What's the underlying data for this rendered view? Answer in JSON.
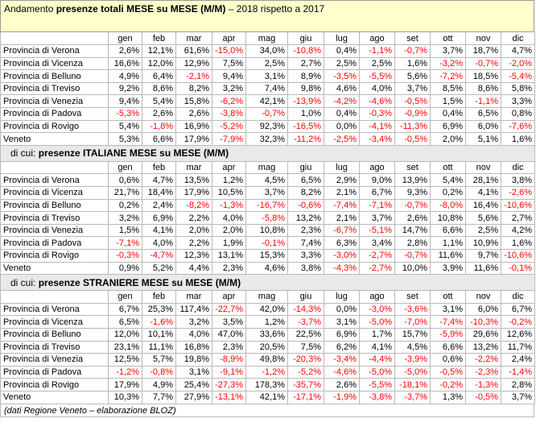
{
  "title": {
    "prefix": "Andamento ",
    "bold": "presenze totali MESE su MESE (M/M)",
    "suffix": " – 2018 rispetto a 2017"
  },
  "months": [
    "gen",
    "feb",
    "mar",
    "apr",
    "mag",
    "giu",
    "lug",
    "ago",
    "set",
    "ott",
    "nov",
    "dic"
  ],
  "sections": [
    {
      "header_prefix": "",
      "header_bold": "",
      "rows": [
        {
          "label": "Provincia di Verona",
          "values": [
            "2,6%",
            "12,1%",
            "61,6%",
            "-15,0%",
            "34,0%",
            "-10,8%",
            "0,4%",
            "-1,1%",
            "-0,7%",
            "3,7%",
            "18,7%",
            "4,7%"
          ]
        },
        {
          "label": "Provincia di Vicenza",
          "values": [
            "16,6%",
            "12,0%",
            "12,9%",
            "7,5%",
            "2,5%",
            "2,7%",
            "2,5%",
            "2,5%",
            "1,6%",
            "-3,2%",
            "-0,7%",
            "-2,0%"
          ]
        },
        {
          "label": "Provincia di Belluno",
          "values": [
            "4,9%",
            "6,4%",
            "-2,1%",
            "9,4%",
            "3,1%",
            "8,9%",
            "-3,5%",
            "-5,5%",
            "5,6%",
            "-7,2%",
            "18,5%",
            "-5,4%"
          ]
        },
        {
          "label": "Provincia di Treviso",
          "values": [
            "9,2%",
            "8,6%",
            "8,2%",
            "3,2%",
            "7,4%",
            "9,8%",
            "4,6%",
            "4,0%",
            "3,7%",
            "8,5%",
            "8,6%",
            "5,8%"
          ]
        },
        {
          "label": "Provincia di Venezia",
          "values": [
            "9,4%",
            "5,4%",
            "15,8%",
            "-6,2%",
            "42,1%",
            "-13,9%",
            "-4,2%",
            "-4,6%",
            "-0,5%",
            "1,5%",
            "-1,1%",
            "3,3%"
          ]
        },
        {
          "label": "Provincia di Padova",
          "values": [
            "-5,3%",
            "2,6%",
            "2,6%",
            "-3,8%",
            "-0,7%",
            "1,0%",
            "0,4%",
            "-0,3%",
            "-0,9%",
            "0,4%",
            "6,5%",
            "0,8%"
          ]
        },
        {
          "label": "Provincia di Rovigo",
          "values": [
            "5,4%",
            "-1,8%",
            "16,9%",
            "-5,2%",
            "92,3%",
            "-16,5%",
            "0,0%",
            "-4,1%",
            "-11,3%",
            "6,9%",
            "6,0%",
            "-7,6%"
          ]
        },
        {
          "label": "Veneto",
          "values": [
            "5,3%",
            "6,6%",
            "17,9%",
            "-7,9%",
            "32,3%",
            "-11,2%",
            "-2,5%",
            "-3,4%",
            "-0,5%",
            "2,0%",
            "5,1%",
            "1,6%"
          ]
        }
      ]
    },
    {
      "header_prefix": "di cui: ",
      "header_bold": "presenze ITALIANE MESE su MESE (M/M)",
      "rows": [
        {
          "label": "Provincia di Verona",
          "values": [
            "0,6%",
            "4,7%",
            "13,5%",
            "1,2%",
            "4,5%",
            "6,5%",
            "2,9%",
            "9,0%",
            "13,9%",
            "5,4%",
            "28,1%",
            "3,8%"
          ]
        },
        {
          "label": "Provincia di Vicenza",
          "values": [
            "21,7%",
            "18,4%",
            "17,9%",
            "10,5%",
            "3,7%",
            "8,2%",
            "2,1%",
            "6,7%",
            "9,3%",
            "0,2%",
            "4,1%",
            "-2,6%"
          ]
        },
        {
          "label": "Provincia di Belluno",
          "values": [
            "0,2%",
            "2,4%",
            "-8,2%",
            "-1,3%",
            "-16,7%",
            "-0,6%",
            "-7,4%",
            "-7,1%",
            "-0,7%",
            "-8,0%",
            "16,4%",
            "-10,6%"
          ]
        },
        {
          "label": "Provincia di Treviso",
          "values": [
            "3,2%",
            "6,9%",
            "2,2%",
            "4,0%",
            "-5,8%",
            "13,2%",
            "2,1%",
            "3,7%",
            "2,6%",
            "10,8%",
            "5,6%",
            "2,7%"
          ]
        },
        {
          "label": "Provincia di Venezia",
          "values": [
            "1,5%",
            "4,1%",
            "2,0%",
            "2,0%",
            "10,8%",
            "2,3%",
            "-6,7%",
            "-5,1%",
            "14,7%",
            "6,6%",
            "2,5%",
            "4,2%"
          ]
        },
        {
          "label": "Provincia di Padova",
          "values": [
            "-7,1%",
            "4,0%",
            "2,2%",
            "1,9%",
            "-0,1%",
            "7,4%",
            "6,3%",
            "3,4%",
            "2,8%",
            "1,1%",
            "10,9%",
            "1,6%"
          ]
        },
        {
          "label": "Provincia di Rovigo",
          "values": [
            "-0,3%",
            "-4,7%",
            "12,3%",
            "13,1%",
            "15,3%",
            "3,3%",
            "-3,0%",
            "-2,7%",
            "-0,7%",
            "11,6%",
            "9,7%",
            "-10,6%"
          ]
        },
        {
          "label": "Veneto",
          "values": [
            "0,9%",
            "5,2%",
            "4,4%",
            "2,3%",
            "4,6%",
            "3,8%",
            "-4,3%",
            "-2,7%",
            "10,0%",
            "3,9%",
            "11,6%",
            "-0,1%"
          ]
        }
      ]
    },
    {
      "header_prefix": "di cui: ",
      "header_bold": "presenze STRANIERE MESE su MESE (M/M)",
      "rows": [
        {
          "label": "Provincia di Verona",
          "values": [
            "6,7%",
            "25,3%",
            "117,4%",
            "-22,7%",
            "42,0%",
            "-14,3%",
            "0,0%",
            "-3,0%",
            "-3,6%",
            "3,1%",
            "6,0%",
            "6,7%"
          ]
        },
        {
          "label": "Provincia di Vicenza",
          "values": [
            "6,5%",
            "-1,6%",
            "3,2%",
            "3,5%",
            "1,2%",
            "-3,7%",
            "3,1%",
            "-5,0%",
            "-7,0%",
            "-7,4%",
            "-10,3%",
            "-0,2%"
          ]
        },
        {
          "label": "Provincia di Belluno",
          "values": [
            "12,0%",
            "10,1%",
            "4,0%",
            "47,0%",
            "33,6%",
            "22,5%",
            "6,9%",
            "1,7%",
            "15,7%",
            "-5,9%",
            "29,6%",
            "12,6%"
          ]
        },
        {
          "label": "Provincia di Treviso",
          "values": [
            "23,1%",
            "11,1%",
            "16,8%",
            "2,3%",
            "20,5%",
            "7,5%",
            "6,2%",
            "4,1%",
            "4,5%",
            "6,6%",
            "13,2%",
            "11,7%"
          ]
        },
        {
          "label": "Provincia di Venezia",
          "values": [
            "12,5%",
            "5,7%",
            "19,8%",
            "-8,9%",
            "49,8%",
            "-20,3%",
            "-3,4%",
            "-4,4%",
            "-3,9%",
            "0,6%",
            "-2,2%",
            "2,4%"
          ]
        },
        {
          "label": "Provincia di Padova",
          "values": [
            "-1,2%",
            "-0,8%",
            "3,1%",
            "-9,1%",
            "-1,2%",
            "-5,2%",
            "-4,6%",
            "-5,0%",
            "-5,0%",
            "-0,5%",
            "-2,3%",
            "-1,4%"
          ]
        },
        {
          "label": "Provincia di Rovigo",
          "values": [
            "17,9%",
            "4,9%",
            "25,4%",
            "-27,3%",
            "178,3%",
            "-35,7%",
            "2,6%",
            "-5,5%",
            "-18,1%",
            "-0,2%",
            "-1,3%",
            "2,8%"
          ]
        },
        {
          "label": "Veneto",
          "values": [
            "10,3%",
            "7,7%",
            "27,9%",
            "-13,1%",
            "42,1%",
            "-17,1%",
            "-1,9%",
            "-3,8%",
            "-3,7%",
            "1,3%",
            "-0,5%",
            "3,7%"
          ]
        }
      ]
    }
  ],
  "footer": "(dati Regione Veneto – elaborazione BLOZ)",
  "colors": {
    "negative": "#ff0000",
    "title_bg": "#ffffcc",
    "section_bg": "#e9e9e9"
  }
}
